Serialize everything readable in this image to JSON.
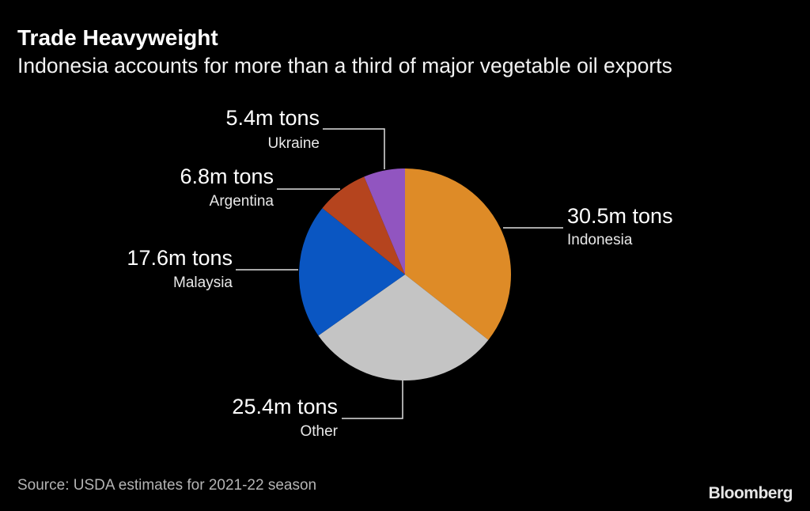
{
  "chart_data": {
    "type": "pie",
    "title": "Trade Heavyweight",
    "subtitle": "Indonesia accounts for more than a third of major vegetable oil exports",
    "unit": "m tons",
    "start": "top",
    "direction": "clockwise",
    "slices": [
      {
        "name": "Indonesia",
        "value": 30.5,
        "label": "30.5m tons",
        "color": "#DE8B27"
      },
      {
        "name": "Other",
        "value": 25.4,
        "label": "25.4m tons",
        "color": "#C4C4C4"
      },
      {
        "name": "Malaysia",
        "value": 17.6,
        "label": "17.6m tons",
        "color": "#0A56C2"
      },
      {
        "name": "Argentina",
        "value": 6.8,
        "label": "6.8m tons",
        "color": "#B5441E"
      },
      {
        "name": "Ukraine",
        "value": 5.4,
        "label": "5.4m tons",
        "color": "#9155C0"
      }
    ],
    "legend": "none",
    "source": "Source: USDA estimates for 2021-22 season"
  },
  "branding": {
    "logo": "Bloomberg"
  }
}
